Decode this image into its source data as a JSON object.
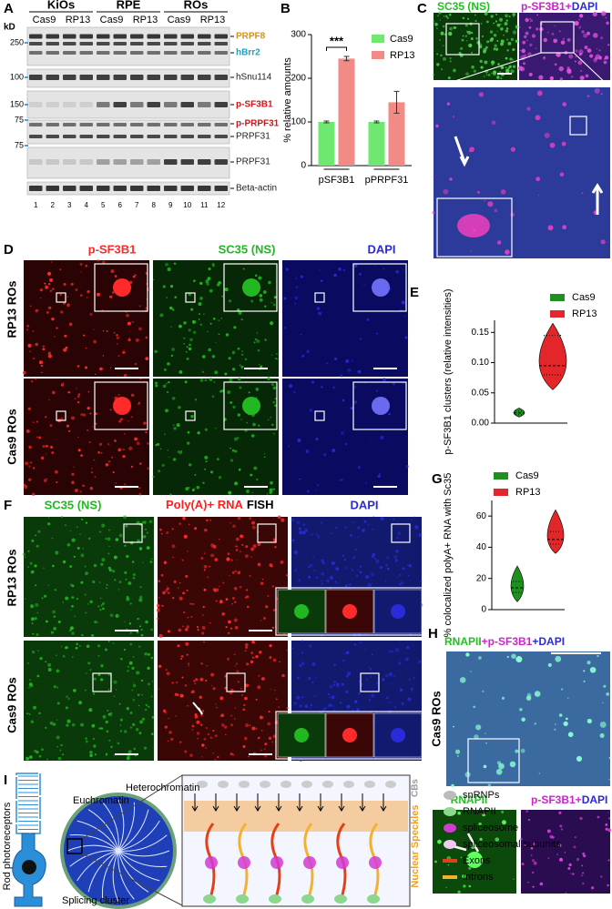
{
  "A": {
    "letter": "A",
    "unit": "kD",
    "groups": [
      "KiOs",
      "RPE",
      "ROs"
    ],
    "conditions": [
      "Cas9",
      "RP13",
      "Cas9",
      "RP13",
      "Cas9",
      "RP13"
    ],
    "lanes": [
      1,
      2,
      3,
      4,
      5,
      6,
      7,
      8,
      9,
      10,
      11,
      12
    ],
    "markers": [
      250,
      100,
      150,
      75,
      75
    ],
    "bands": [
      "PRPF8",
      "hBrr2",
      "hSnu114",
      "p-SF3B1",
      "p-PRPF31",
      "PRPF31",
      "PRPF31",
      "Beta-actin"
    ]
  },
  "B": {
    "letter": "B",
    "chart": {
      "type": "bar",
      "ylabel": "% relative amounts",
      "categories": [
        "pSF3B1",
        "pPRPF31"
      ],
      "series": [
        {
          "name": "Cas9",
          "color": "#6fe86f",
          "values": [
            100,
            100
          ],
          "errors": [
            2,
            2
          ]
        },
        {
          "name": "RP13",
          "color": "#f28b86",
          "values": [
            245,
            145
          ],
          "errors": [
            5,
            25
          ]
        }
      ],
      "ylim": [
        0,
        300
      ],
      "yticks": [
        0,
        100,
        200,
        300
      ],
      "significance": "***"
    }
  },
  "C": {
    "letter": "C",
    "left": "SC35 (NS)",
    "right": [
      "p-SF3B1+",
      "DAPI"
    ]
  },
  "D": {
    "letter": "D",
    "columns": [
      "p-SF3B1",
      "SC35 (NS)",
      "DAPI"
    ],
    "rows": [
      "RP13 ROs",
      "Cas9 ROs"
    ]
  },
  "E": {
    "letter": "E",
    "chart": {
      "type": "violin",
      "ylabel": "p-SF3B1 clusters (relative intensities)",
      "series": [
        {
          "name": "Cas9",
          "color": "#1f8f1f",
          "min": 0.01,
          "q1": 0.014,
          "median": 0.017,
          "q3": 0.02,
          "max": 0.025
        },
        {
          "name": "RP13",
          "color": "#e3262a",
          "min": 0.055,
          "q1": 0.08,
          "median": 0.095,
          "q3": 0.145,
          "max": 0.165
        }
      ],
      "ylim": [
        0,
        0.17
      ],
      "yticks": [
        {
          "value": 0,
          "label": "0.00"
        },
        0.05,
        {
          "value": 0.1,
          "label": "0.10"
        },
        0.15
      ]
    }
  },
  "F": {
    "letter": "F",
    "columns": [
      "SC35 (NS)",
      [
        "Poly(A)+ RNA",
        "FISH"
      ],
      "DAPI"
    ],
    "rows": [
      "RP13 ROs",
      "Cas9 ROs"
    ]
  },
  "G": {
    "letter": "G",
    "chart": {
      "type": "violin",
      "ylabel": "% colocalized polyA+ RNA with Sc35",
      "series": [
        {
          "name": "Cas9",
          "color": "#1f8f1f",
          "min": 5,
          "q1": 11,
          "median": 14,
          "q3": 18,
          "max": 28
        },
        {
          "name": "RP13",
          "color": "#e3262a",
          "min": 36,
          "q1": 42,
          "median": 45,
          "q3": 50,
          "max": 64
        }
      ],
      "ylim": [
        0,
        70
      ],
      "yticks": [
        0,
        20,
        40,
        60
      ]
    }
  },
  "H": {
    "letter": "H",
    "header": [
      "RNAPII",
      "+p-SF3B1",
      "+DAPI"
    ],
    "row": "Cas9 ROs",
    "bottom_left": "RNAPII",
    "bottom_right": [
      "p-SF3B1+",
      "DAPI"
    ]
  },
  "I": {
    "letter": "I",
    "cell": "Rod photoreceptors",
    "euchromatin": "Euchromatin",
    "heterochromatin": "Heterochromatin",
    "cluster": "Splicing cluster",
    "cbs": "CBs",
    "speckles": "Nuclear Speckles",
    "legend": [
      "snRNPs",
      "RNAPII",
      "spliceosome",
      "spliceosomal subunits",
      "Exons",
      "Introns"
    ]
  }
}
